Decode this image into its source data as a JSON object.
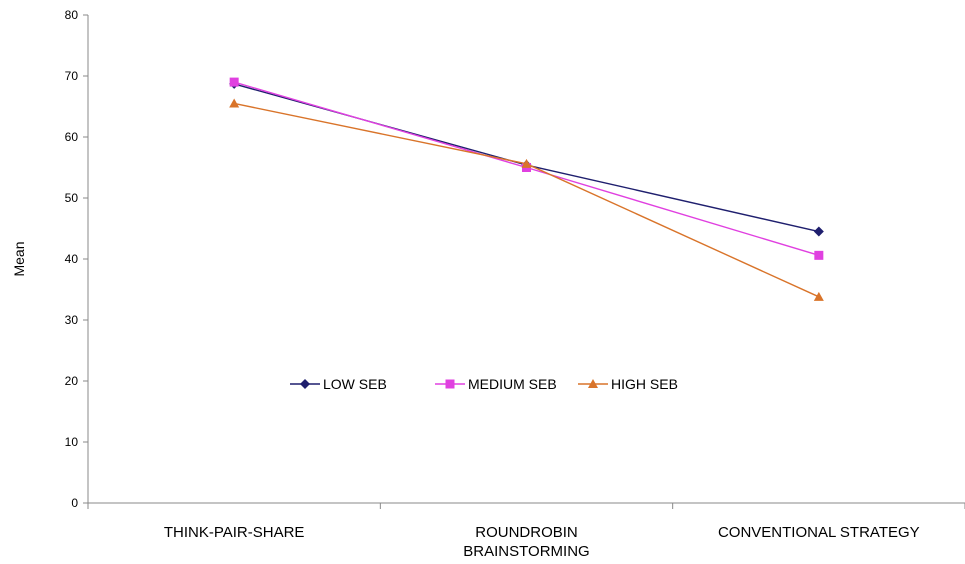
{
  "chart_data": {
    "type": "line",
    "categories": [
      [
        "THINK-PAIR-SHARE"
      ],
      [
        "ROUNDROBIN",
        "BRAINSTORMING"
      ],
      [
        "CONVENTIONAL STRATEGY"
      ]
    ],
    "ylabel": "Mean",
    "xlabel": "",
    "ylim": [
      0,
      80
    ],
    "yticks": [
      0,
      10,
      20,
      30,
      40,
      50,
      60,
      70,
      80
    ],
    "grid": false,
    "legend_position": "center",
    "series": [
      {
        "name": "LOW SEB",
        "values": [
          68.7,
          55.4,
          44.5
        ],
        "color": "#1f1f6e",
        "marker": "diamond"
      },
      {
        "name": "MEDIUM SEB",
        "values": [
          69.0,
          55.0,
          40.6
        ],
        "color": "#e040e0",
        "marker": "square"
      },
      {
        "name": "HIGH SEB",
        "values": [
          65.5,
          55.6,
          33.8
        ],
        "color": "#d9742a",
        "marker": "triangle"
      }
    ]
  }
}
